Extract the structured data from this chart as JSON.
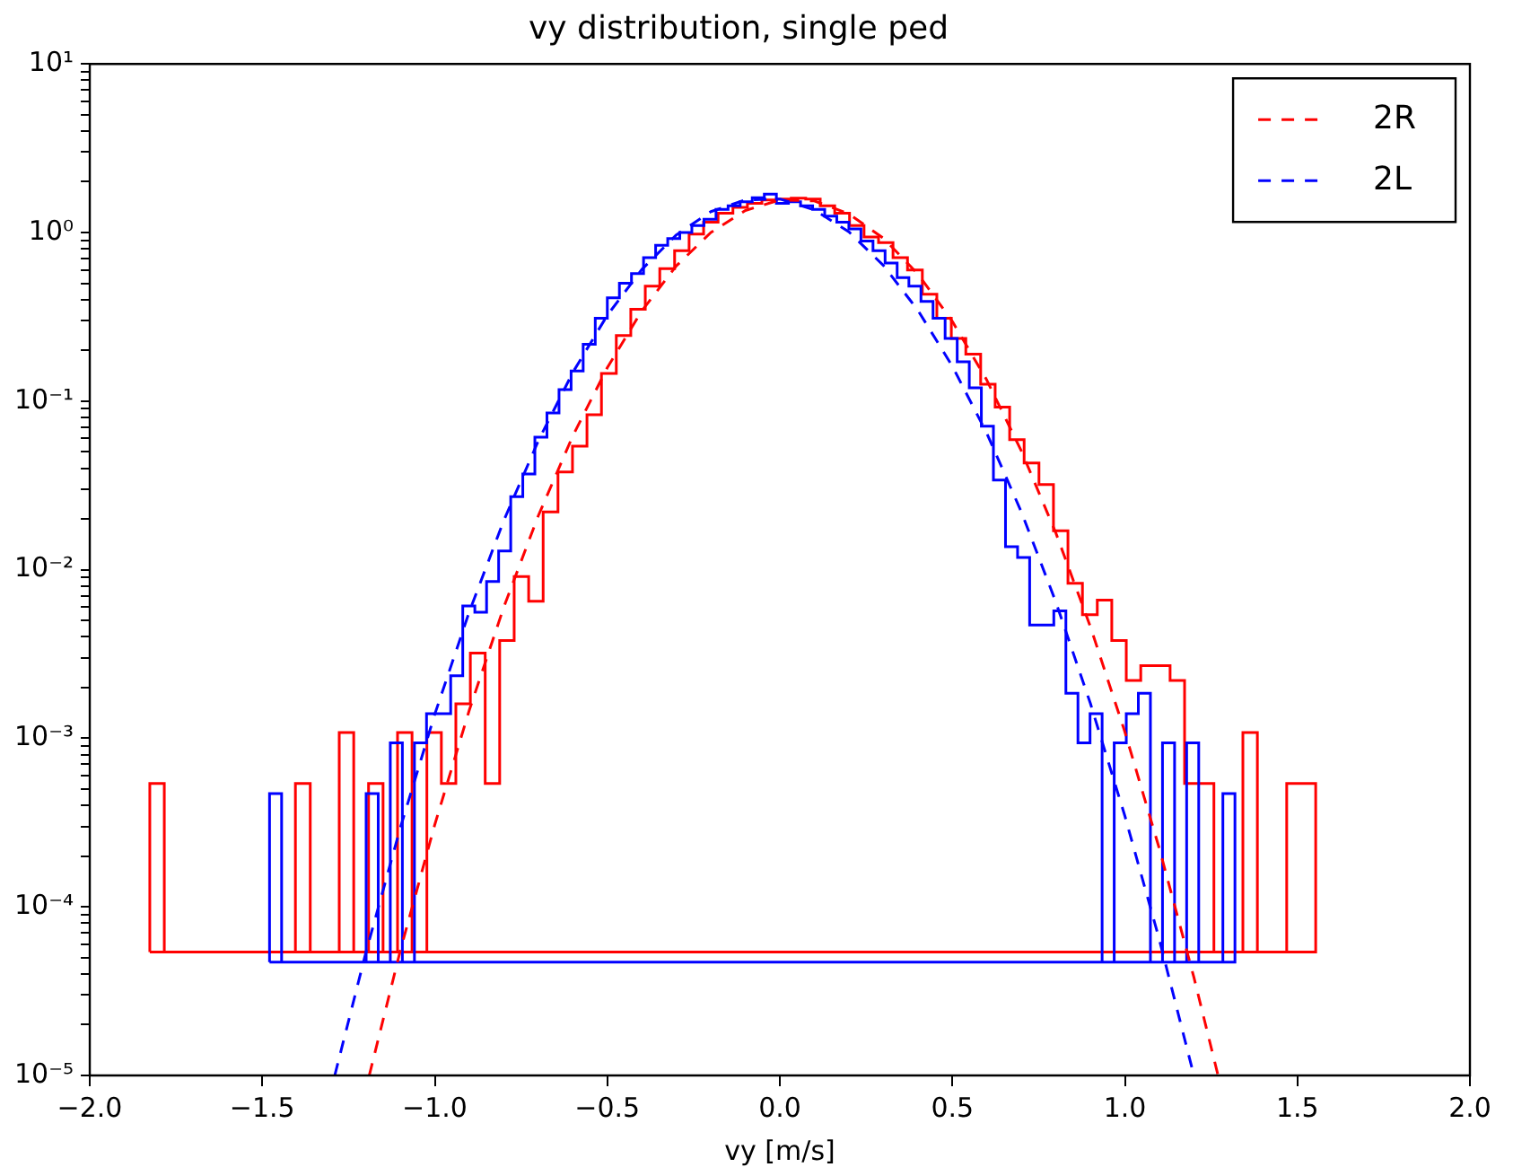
{
  "chart_data": {
    "type": "line",
    "title": "vy distribution, single ped",
    "xlabel": "vy [m/s]",
    "log": "y",
    "grid": false,
    "legend": "top right",
    "xlim": [
      -2,
      2
    ],
    "ylim": [
      1e-05,
      10
    ],
    "xticks": [
      {
        "value": -2,
        "label": "−2.0"
      },
      {
        "value": -1.5,
        "label": "−1.5"
      },
      {
        "value": -1,
        "label": "−1.0"
      },
      {
        "value": -0.5,
        "label": "−0.5"
      },
      {
        "value": 0,
        "label": "0.0"
      },
      {
        "value": 0.5,
        "label": "0.5"
      },
      {
        "value": 1,
        "label": "1.0"
      },
      {
        "value": 1.5,
        "label": "1.5"
      },
      {
        "value": 2,
        "label": "2.0"
      }
    ],
    "yticks": [
      {
        "value": 1e-05,
        "label": "10⁻⁵"
      },
      {
        "value": 2e-05,
        "label": null
      },
      {
        "value": 3e-05,
        "label": null
      },
      {
        "value": 4e-05,
        "label": null
      },
      {
        "value": 5e-05,
        "label": null
      },
      {
        "value": 6e-05,
        "label": null
      },
      {
        "value": 7e-05,
        "label": null
      },
      {
        "value": 8e-05,
        "label": null
      },
      {
        "value": 9e-05,
        "label": null
      },
      {
        "value": 0.0001,
        "label": "10⁻⁴"
      },
      {
        "value": 0.0002,
        "label": null
      },
      {
        "value": 0.0003,
        "label": null
      },
      {
        "value": 0.0004,
        "label": null
      },
      {
        "value": 0.0005,
        "label": null
      },
      {
        "value": 0.0006,
        "label": null
      },
      {
        "value": 0.0007,
        "label": null
      },
      {
        "value": 0.0008,
        "label": null
      },
      {
        "value": 0.0009,
        "label": null
      },
      {
        "value": 0.001,
        "label": "10⁻³"
      },
      {
        "value": 0.002,
        "label": null
      },
      {
        "value": 0.003,
        "label": null
      },
      {
        "value": 0.004,
        "label": null
      },
      {
        "value": 0.005,
        "label": null
      },
      {
        "value": 0.006,
        "label": null
      },
      {
        "value": 0.007,
        "label": null
      },
      {
        "value": 0.008,
        "label": null
      },
      {
        "value": 0.009,
        "label": null
      },
      {
        "value": 0.01,
        "label": "10⁻²"
      },
      {
        "value": 0.02,
        "label": null
      },
      {
        "value": 0.03,
        "label": null
      },
      {
        "value": 0.04,
        "label": null
      },
      {
        "value": 0.05,
        "label": null
      },
      {
        "value": 0.06,
        "label": null
      },
      {
        "value": 0.07,
        "label": null
      },
      {
        "value": 0.08,
        "label": null
      },
      {
        "value": 0.09,
        "label": null
      },
      {
        "value": 0.1,
        "label": "10⁻¹"
      },
      {
        "value": 0.2,
        "label": null
      },
      {
        "value": 0.3,
        "label": null
      },
      {
        "value": 0.4,
        "label": null
      },
      {
        "value": 0.5,
        "label": null
      },
      {
        "value": 0.6,
        "label": null
      },
      {
        "value": 0.7,
        "label": null
      },
      {
        "value": 0.8,
        "label": null
      },
      {
        "value": 0.9,
        "label": null
      },
      {
        "value": 1,
        "label": "10⁰"
      },
      {
        "value": 2,
        "label": null
      },
      {
        "value": 3,
        "label": null
      },
      {
        "value": 4,
        "label": null
      },
      {
        "value": 5,
        "label": null
      },
      {
        "value": 6,
        "label": null
      },
      {
        "value": 7,
        "label": null
      },
      {
        "value": 8,
        "label": null
      },
      {
        "value": 9,
        "label": null
      },
      {
        "value": 10,
        "label": "10¹"
      }
    ],
    "series": [
      {
        "type": "histogram",
        "color": "#ff0000",
        "bins": [
          -1.826,
          -1.784,
          -1.742,
          -1.699,
          -1.657,
          -1.615,
          -1.573,
          -1.53,
          -1.488,
          -1.446,
          -1.404,
          -1.361,
          -1.319,
          -1.277,
          -1.235,
          -1.192,
          -1.15,
          -1.108,
          -1.066,
          -1.023,
          -0.981,
          -0.939,
          -0.897,
          -0.854,
          -0.812,
          -0.77,
          -0.728,
          -0.686,
          -0.643,
          -0.601,
          -0.559,
          -0.517,
          -0.474,
          -0.432,
          -0.39,
          -0.348,
          -0.305,
          -0.263,
          -0.221,
          -0.179,
          -0.136,
          -0.094,
          -0.052,
          -0.01,
          0.033,
          0.075,
          0.117,
          0.159,
          0.202,
          0.244,
          0.286,
          0.328,
          0.37,
          0.413,
          0.455,
          0.497,
          0.539,
          0.582,
          0.624,
          0.666,
          0.708,
          0.751,
          0.793,
          0.835,
          0.877,
          0.92,
          0.962,
          1.004,
          1.046,
          1.089,
          1.131,
          1.173,
          1.215,
          1.258,
          1.3,
          1.342,
          1.384,
          1.426,
          1.469,
          1.511,
          1.553
        ],
        "values": [
          0.00054,
          5.4e-05,
          5.4e-05,
          5.4e-05,
          5.4e-05,
          5.4e-05,
          5.4e-05,
          5.4e-05,
          5.4e-05,
          5.4e-05,
          0.00054,
          5.4e-05,
          5.4e-05,
          0.00108,
          5.4e-05,
          0.00054,
          5.4e-05,
          0.00108,
          5.4e-05,
          0.00108,
          0.00054,
          0.0016,
          0.0032,
          0.00054,
          0.0038,
          0.0091,
          0.0065,
          0.022,
          0.038,
          0.054,
          0.083,
          0.146,
          0.245,
          0.35,
          0.48,
          0.61,
          0.78,
          0.98,
          1.15,
          1.3,
          1.41,
          1.49,
          1.56,
          1.58,
          1.6,
          1.58,
          1.44,
          1.3,
          1.1,
          0.94,
          0.87,
          0.71,
          0.6,
          0.43,
          0.31,
          0.235,
          0.19,
          0.126,
          0.092,
          0.059,
          0.043,
          0.032,
          0.017,
          0.0083,
          0.0054,
          0.0066,
          0.0038,
          0.0022,
          0.0027,
          0.0027,
          0.0022,
          0.00054,
          0.00054,
          5.4e-05,
          5.4e-05,
          0.00108,
          5.4e-05,
          5.4e-05,
          0.00054,
          0.00054
        ]
      },
      {
        "type": "histogram",
        "color": "#0000ff",
        "bins": [
          -1.479,
          -1.444,
          -1.409,
          -1.374,
          -1.339,
          -1.304,
          -1.269,
          -1.234,
          -1.199,
          -1.164,
          -1.129,
          -1.094,
          -1.059,
          -1.024,
          -0.989,
          -0.954,
          -0.919,
          -0.884,
          -0.85,
          -0.815,
          -0.78,
          -0.745,
          -0.71,
          -0.675,
          -0.64,
          -0.605,
          -0.57,
          -0.535,
          -0.5,
          -0.465,
          -0.43,
          -0.395,
          -0.36,
          -0.325,
          -0.29,
          -0.255,
          -0.22,
          -0.185,
          -0.15,
          -0.115,
          -0.08,
          -0.045,
          -0.01,
          0.025,
          0.06,
          0.095,
          0.13,
          0.165,
          0.2,
          0.235,
          0.27,
          0.305,
          0.34,
          0.374,
          0.409,
          0.444,
          0.479,
          0.514,
          0.549,
          0.584,
          0.619,
          0.654,
          0.689,
          0.724,
          0.759,
          0.794,
          0.829,
          0.864,
          0.899,
          0.934,
          0.969,
          1.004,
          1.039,
          1.074,
          1.109,
          1.144,
          1.179,
          1.214,
          1.249,
          1.284,
          1.319
        ],
        "values": [
          0.00047,
          4.7e-05,
          4.7e-05,
          4.7e-05,
          4.7e-05,
          4.7e-05,
          4.7e-05,
          4.7e-05,
          0.00047,
          4.7e-05,
          0.00094,
          4.7e-05,
          0.00094,
          0.0014,
          0.0014,
          0.00235,
          0.0061,
          0.0056,
          0.0085,
          0.0129,
          0.0271,
          0.037,
          0.061,
          0.085,
          0.117,
          0.151,
          0.217,
          0.31,
          0.41,
          0.5,
          0.57,
          0.71,
          0.84,
          0.92,
          1.0,
          1.1,
          1.2,
          1.37,
          1.44,
          1.52,
          1.61,
          1.69,
          1.49,
          1.52,
          1.44,
          1.37,
          1.25,
          1.15,
          1.05,
          0.89,
          0.78,
          0.66,
          0.54,
          0.48,
          0.39,
          0.31,
          0.235,
          0.171,
          0.12,
          0.071,
          0.034,
          0.0137,
          0.0118,
          0.0047,
          0.0047,
          0.0057,
          0.00185,
          0.00094,
          0.0014,
          4.7e-05,
          0.00094,
          0.0014,
          0.00185,
          4.7e-05,
          0.00094,
          4.7e-05,
          0.00094,
          4.7e-05,
          4.7e-05,
          0.00047
        ]
      },
      {
        "name": "2R",
        "color": "#fe0202",
        "line_style": "dashed",
        "x": [
          -1.19,
          -1.1,
          -1.0,
          -0.9,
          -0.8,
          -0.7,
          -0.6,
          -0.5,
          -0.4,
          -0.3,
          -0.2,
          -0.1,
          0,
          0.1,
          0.2,
          0.3,
          0.4,
          0.5,
          0.6,
          0.7,
          0.8,
          0.9,
          1.0,
          1.1,
          1.2,
          1.27
        ],
        "values": [
          1e-05,
          5.5e-05,
          0.000308,
          0.00147,
          0.006,
          0.0209,
          0.0622,
          0.158,
          0.343,
          0.634,
          1.0,
          1.35,
          1.56,
          1.54,
          1.29,
          0.926,
          0.568,
          0.297,
          0.133,
          0.0506,
          0.0165,
          0.00459,
          0.00109,
          0.000221,
          3.82e-05,
          1e-05
        ]
      },
      {
        "name": "2L",
        "color": "#0202fe",
        "line_style": "dashed",
        "x": [
          -1.29,
          -1.2,
          -1.1,
          -1.0,
          -0.9,
          -0.8,
          -0.7,
          -0.6,
          -0.5,
          -0.4,
          -0.3,
          -0.2,
          -0.1,
          0,
          0.1,
          0.2,
          0.3,
          0.4,
          0.5,
          0.6,
          0.7,
          0.8,
          0.9,
          1.0,
          1.1,
          1.2
        ],
        "values": [
          1e-05,
          5.34e-05,
          0.000294,
          0.00139,
          0.00563,
          0.0196,
          0.0581,
          0.148,
          0.323,
          0.604,
          0.968,
          1.33,
          1.56,
          1.58,
          1.36,
          1.01,
          0.638,
          0.346,
          0.161,
          0.0643,
          0.022,
          0.00642,
          0.00161,
          0.000346,
          6.38e-05,
          1e-05
        ]
      }
    ]
  }
}
